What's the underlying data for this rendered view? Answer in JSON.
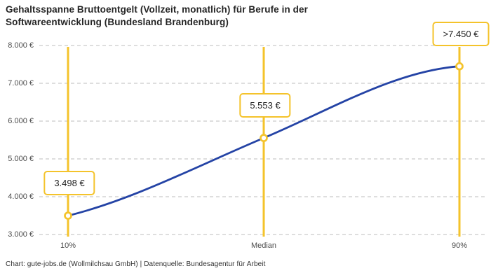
{
  "title": {
    "line1": "Gehaltsspanne Bruttoentgelt (Vollzeit, monatlich) für Berufe in der",
    "line2": "Softwareentwicklung (Bundesland Brandenburg)"
  },
  "footer": "Chart: gute-jobs.de (Wollmilchsau GmbH) | Datenquelle: Bundesagentur für Arbeit",
  "chart_data": {
    "type": "line",
    "title": "Gehaltsspanne Bruttoentgelt (Vollzeit, monatlich) für Berufe in der Softwareentwicklung (Bundesland Brandenburg)",
    "categories": [
      "10%",
      "Median",
      "90%"
    ],
    "x_percentiles": [
      10,
      50,
      90
    ],
    "values": [
      3498,
      5553,
      7450
    ],
    "point_labels": [
      "3.498 €",
      "5.553 €",
      ">7.450 €"
    ],
    "ylim": [
      3000,
      8000
    ],
    "y_ticks": [
      {
        "value": 3000,
        "label": "3.000 €"
      },
      {
        "value": 4000,
        "label": "4.000 €"
      },
      {
        "value": 5000,
        "label": "5.000 €"
      },
      {
        "value": 6000,
        "label": "6.000 €"
      },
      {
        "value": 7000,
        "label": "7.000 €"
      },
      {
        "value": 8000,
        "label": "8.000 €"
      }
    ],
    "grid": "horizontal-dashed",
    "legend": "none",
    "colors": {
      "line": "#2443A5",
      "accent": "#F4C32B",
      "grid": "#C9C9C9",
      "marker_fill": "#FFFFFF"
    }
  }
}
